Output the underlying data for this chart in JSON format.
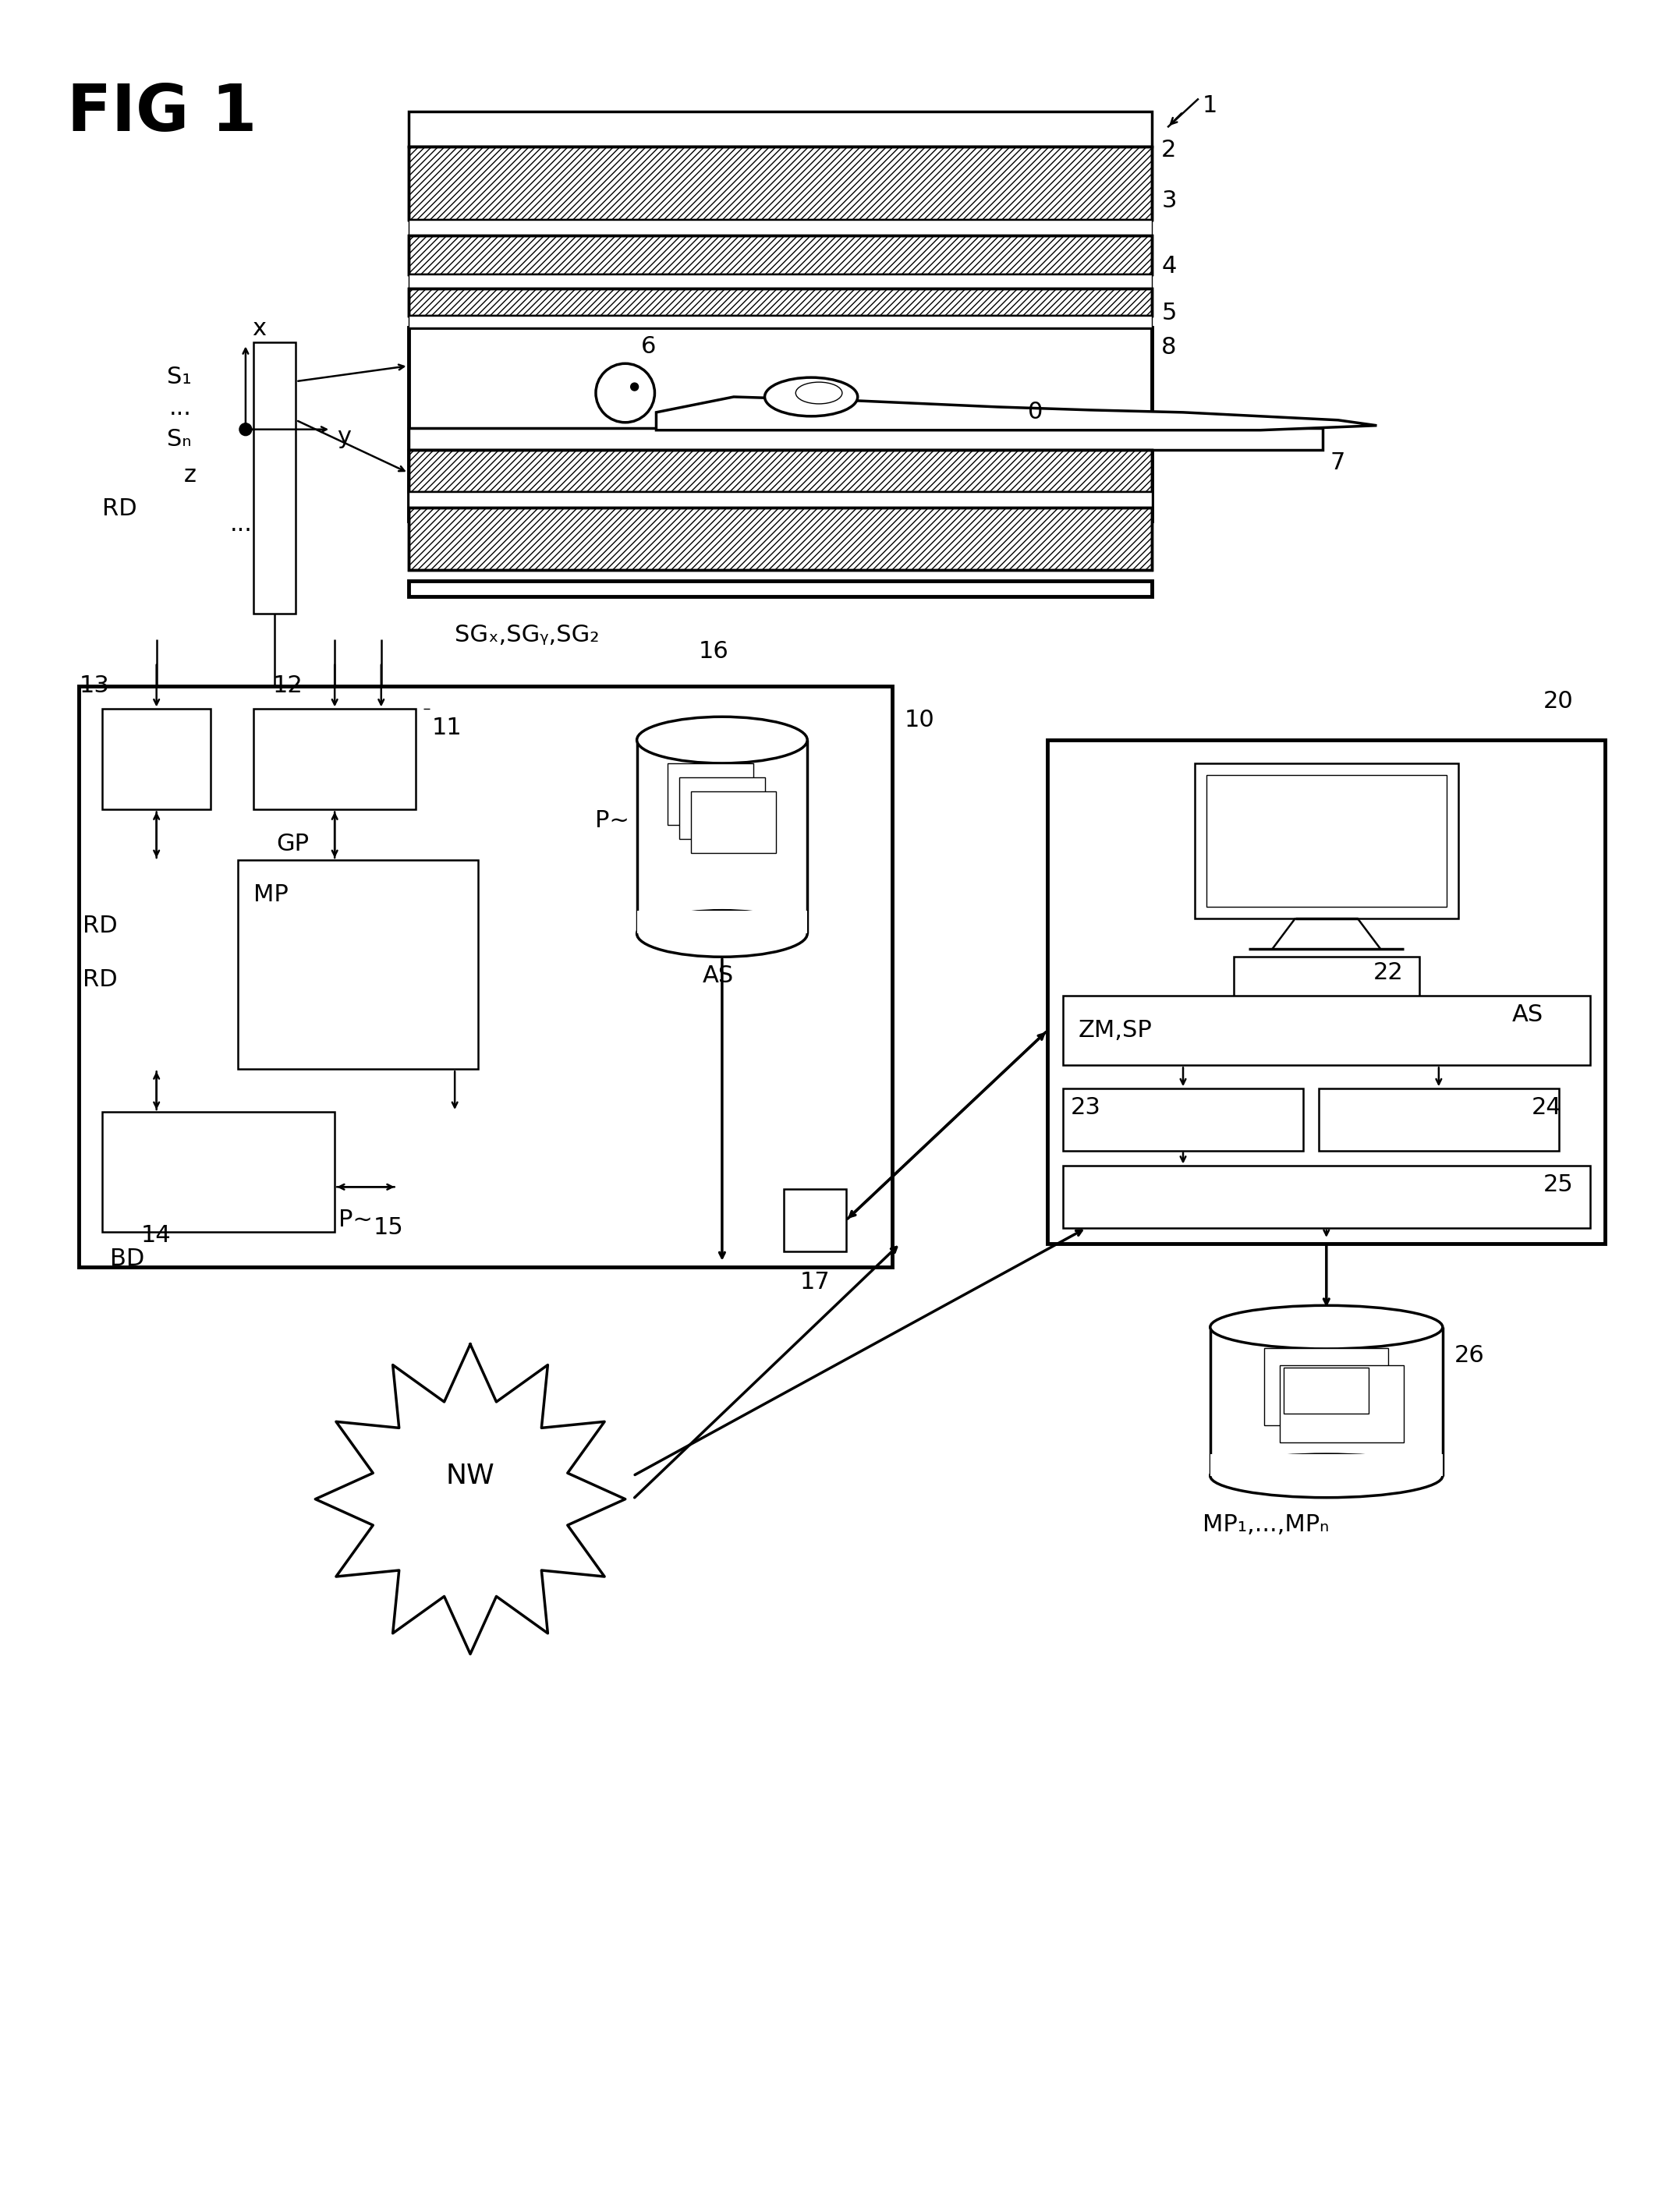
{
  "fig_width": 21.26,
  "fig_height": 28.37,
  "bg_color": "#ffffff",
  "labels": {
    "fig_title": "FIG 1",
    "ref0": "0",
    "ref1": "1",
    "ref2": "2",
    "ref3": "3",
    "ref4": "4",
    "ref5": "5",
    "ref6": "6",
    "ref7": "7",
    "ref8": "8",
    "ref10": "10",
    "ref11": "11",
    "ref12": "12",
    "ref13": "13",
    "ref14": "14",
    "ref15": "15",
    "ref16": "16",
    "ref17": "17",
    "ref20": "20",
    "ref22": "22",
    "ref23": "23",
    "ref24": "24",
    "ref25": "25",
    "ref26": "26",
    "axis_x": "x",
    "axis_y": "y",
    "axis_z": "z",
    "S1": "S₁",
    "SN": "Sₙ",
    "RD": "RD",
    "GP": "GP",
    "MP": "MP",
    "BD": "BD",
    "P": "P",
    "AS": "AS",
    "NW": "NW",
    "ZM_SP": "ZM,SP",
    "MP1_MPN": "MP₁,...,MPₙ",
    "SG_xyz": "SGₓ,SGᵧ,SG₂",
    "dots": "..."
  }
}
